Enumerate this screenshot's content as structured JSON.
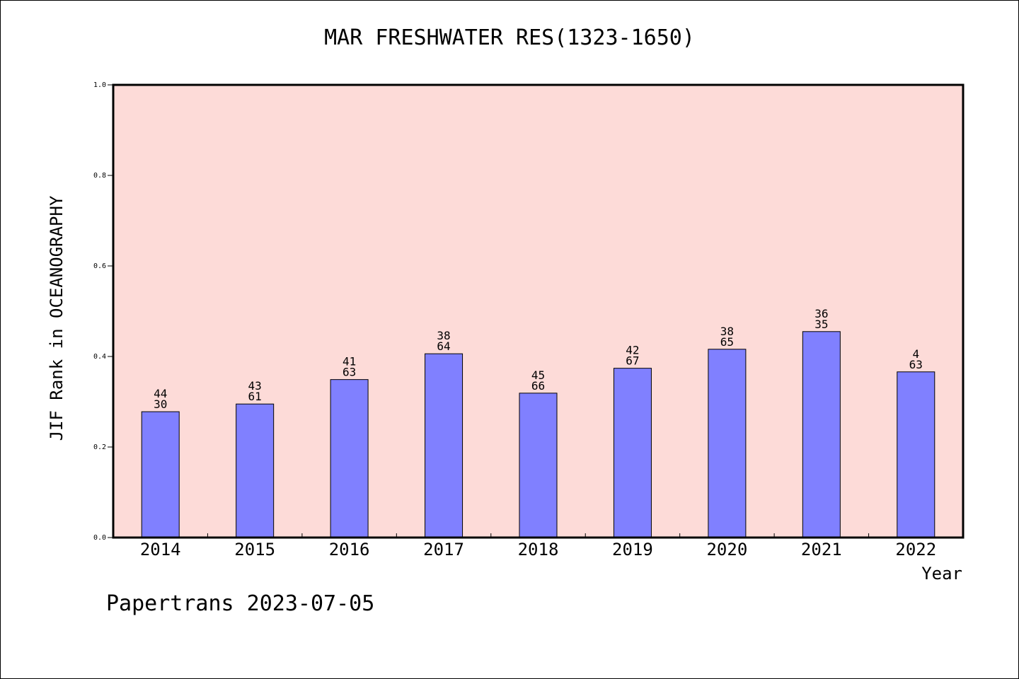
{
  "chart_data": {
    "type": "bar",
    "title": "MAR FRESHWATER RES(1323-1650)",
    "xlabel": "Year",
    "ylabel": "JIF Rank in OCEANOGRAPHY",
    "categories": [
      "2014",
      "2015",
      "2016",
      "2017",
      "2018",
      "2019",
      "2020",
      "2021",
      "2022"
    ],
    "values": [
      0.278,
      0.295,
      0.349,
      0.406,
      0.319,
      0.374,
      0.416,
      0.455,
      0.366
    ],
    "labels_top": [
      "44",
      "43",
      "41",
      "38",
      "45",
      "42",
      "38",
      "36",
      "4"
    ],
    "labels_bottom": [
      "30",
      "61",
      "63",
      "64",
      "66",
      "67",
      "65",
      "35",
      "63"
    ],
    "yticks": [
      "0.0",
      "0.2",
      "0.4",
      "0.6",
      "0.8",
      "1.0"
    ],
    "ylim": [
      0,
      1
    ],
    "grid": false,
    "colors": {
      "bar": "#8080ff",
      "plot_bg": "#fddbd8",
      "axis": "#000000"
    }
  },
  "footer": "Papertrans 2023-07-05"
}
